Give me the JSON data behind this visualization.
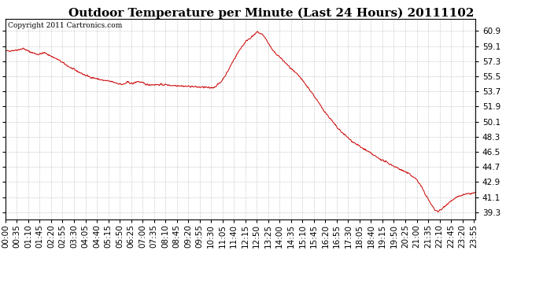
{
  "title": "Outdoor Temperature per Minute (Last 24 Hours) 20111102",
  "copyright_text": "Copyright 2011 Cartronics.com",
  "line_color": "#cc0000",
  "bg_color": "#ffffff",
  "plot_bg_color": "#ffffff",
  "grid_color": "#bbbbbb",
  "yticks": [
    39.3,
    41.1,
    42.9,
    44.7,
    46.5,
    48.3,
    50.1,
    51.9,
    53.7,
    55.5,
    57.3,
    59.1,
    60.9
  ],
  "ylim": [
    38.4,
    62.3
  ],
  "xtick_labels": [
    "00:00",
    "00:35",
    "01:10",
    "01:45",
    "02:20",
    "02:55",
    "03:30",
    "04:05",
    "04:40",
    "05:15",
    "05:50",
    "06:25",
    "07:00",
    "07:35",
    "08:10",
    "08:45",
    "09:20",
    "09:55",
    "10:30",
    "11:05",
    "11:40",
    "12:15",
    "12:50",
    "13:25",
    "14:00",
    "14:35",
    "15:10",
    "15:45",
    "16:20",
    "16:55",
    "17:30",
    "18:05",
    "18:40",
    "19:15",
    "19:50",
    "20:25",
    "21:00",
    "21:35",
    "22:10",
    "22:45",
    "23:20",
    "23:55"
  ],
  "title_fontsize": 11,
  "copyright_fontsize": 6.5,
  "tick_fontsize": 7.5
}
